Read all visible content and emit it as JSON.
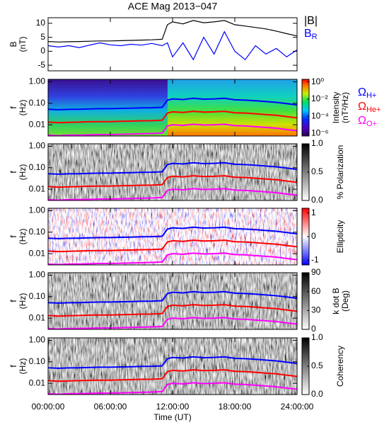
{
  "chart_data": [
    {
      "type": "line",
      "title": "ACE Mag 2013−047",
      "ylabel": "B",
      "yunit": "(nT)",
      "xlabel": "Time (UT)",
      "x": [
        0,
        1,
        2,
        3,
        4,
        5,
        6,
        7,
        8,
        9,
        10,
        11,
        11.5,
        12,
        13,
        14,
        15,
        16,
        17,
        18,
        19,
        20,
        21,
        22,
        23,
        24
      ],
      "xlim": [
        0,
        24
      ],
      "xticks": [
        {
          "value": 0,
          "label": "00:00:00"
        },
        {
          "value": 6,
          "label": "06:00:00"
        },
        {
          "value": 12,
          "label": "12:00:00"
        },
        {
          "value": 18,
          "label": "18:00:00"
        },
        {
          "value": 24,
          "label": "24:00:00"
        }
      ],
      "ylim": [
        -7,
        12
      ],
      "yticks": [
        10,
        5,
        0,
        -5
      ],
      "series": [
        {
          "name": "|B|",
          "color": "#000000",
          "values": [
            3.5,
            3.3,
            3.4,
            3.5,
            3.6,
            3.7,
            3.7,
            3.8,
            3.9,
            4.0,
            4.1,
            4.3,
            9.5,
            10.5,
            9.8,
            11,
            10.2,
            10.5,
            11,
            9.5,
            9,
            8.5,
            8,
            7.2,
            6.3,
            5.5
          ]
        },
        {
          "name": "B",
          "subscript": "R",
          "color": "#0000ff",
          "values": [
            2,
            1.5,
            2,
            1.3,
            2.2,
            3,
            2.3,
            2,
            2.5,
            2.2,
            2.8,
            2,
            3,
            -2,
            3,
            -3,
            5,
            -1,
            7,
            0,
            -3,
            2,
            -1,
            1,
            -2,
            0.5
          ]
        }
      ]
    },
    {
      "type": "spectrogram",
      "ylabel": "f",
      "yunit": "(Hz)",
      "ylog": true,
      "ylim": [
        0.003,
        1.3
      ],
      "yticks": [
        {
          "value": 1,
          "label": "1.00"
        },
        {
          "value": 0.1,
          "label": "0.10"
        },
        {
          "value": 0.01,
          "label": "0.01"
        }
      ],
      "cbar_label": "Intensity",
      "cbar_unit": "(nT²/Hz)",
      "clog": true,
      "clim": [
        5e-07,
        2
      ],
      "colormap": "rainbow",
      "cticks": [
        {
          "value": 1,
          "label": "10⁰"
        },
        {
          "value": 0.01,
          "label": "10⁻²"
        },
        {
          "value": 0.0001,
          "label": "10⁻⁴"
        },
        {
          "value": 1e-06,
          "label": "10⁻⁶"
        }
      ],
      "series": [
        {
          "name": "Ω",
          "subscript": "H+",
          "color": "#0000ff",
          "values": [
            0.053,
            0.05,
            0.052,
            0.053,
            0.055,
            0.056,
            0.056,
            0.058,
            0.059,
            0.061,
            0.062,
            0.065,
            0.14,
            0.16,
            0.15,
            0.17,
            0.155,
            0.16,
            0.17,
            0.145,
            0.14,
            0.13,
            0.12,
            0.11,
            0.096,
            0.084
          ]
        },
        {
          "name": "Ω",
          "subscript": "He+",
          "color": "#ff0000",
          "values": [
            0.0133,
            0.0125,
            0.013,
            0.0133,
            0.0138,
            0.014,
            0.014,
            0.0145,
            0.0148,
            0.0153,
            0.0155,
            0.0163,
            0.035,
            0.04,
            0.0375,
            0.0425,
            0.039,
            0.04,
            0.0425,
            0.036,
            0.035,
            0.0325,
            0.03,
            0.0275,
            0.024,
            0.021
          ]
        },
        {
          "name": "Ω",
          "subscript": "O+",
          "color": "#ff00ff",
          "values": [
            0.0033,
            0.0031,
            0.0033,
            0.0033,
            0.0034,
            0.0035,
            0.0035,
            0.0036,
            0.0037,
            0.0038,
            0.0039,
            0.0041,
            0.0088,
            0.01,
            0.0094,
            0.0106,
            0.0097,
            0.01,
            0.0106,
            0.0091,
            0.0088,
            0.0081,
            0.0075,
            0.0069,
            0.006,
            0.0053
          ]
        }
      ]
    },
    {
      "type": "spectrogram",
      "ylabel": "f",
      "yunit": "(Hz)",
      "ylog": true,
      "ylim": [
        0.003,
        1.3
      ],
      "yticks": [
        {
          "value": 1,
          "label": "1.00"
        },
        {
          "value": 0.1,
          "label": "0.10"
        },
        {
          "value": 0.01,
          "label": "0.01"
        }
      ],
      "cbar_label": "% Polarization",
      "clim": [
        0,
        1
      ],
      "colormap": "gray",
      "cticks": [
        {
          "value": 1,
          "label": "1.0"
        },
        {
          "value": 0.5,
          "label": "0.5"
        },
        {
          "value": 0,
          "label": "0.0"
        }
      ]
    },
    {
      "type": "spectrogram",
      "ylabel": "f",
      "yunit": "(Hz)",
      "ylog": true,
      "ylim": [
        0.003,
        1.3
      ],
      "yticks": [
        {
          "value": 1,
          "label": "1.00"
        },
        {
          "value": 0.1,
          "label": "0.10"
        },
        {
          "value": 0.01,
          "label": "0.01"
        }
      ],
      "cbar_label": "Ellipticity",
      "clim": [
        -1.2,
        1.2
      ],
      "colormap": "bwr",
      "cticks": [
        1,
        0,
        -1
      ]
    },
    {
      "type": "spectrogram",
      "ylabel": "f",
      "yunit": "(Hz)",
      "ylog": true,
      "ylim": [
        0.003,
        1.3
      ],
      "yticks": [
        {
          "value": 1,
          "label": "1.00"
        },
        {
          "value": 0.1,
          "label": "0.10"
        },
        {
          "value": 0.01,
          "label": "0.01"
        }
      ],
      "cbar_label": "k dot B",
      "cbar_unit": "(Deg)",
      "clim": [
        0,
        90
      ],
      "colormap": "gray",
      "cticks": [
        90,
        60,
        30,
        0
      ]
    },
    {
      "type": "spectrogram",
      "ylabel": "f",
      "yunit": "(Hz)",
      "ylog": true,
      "ylim": [
        0.003,
        1.3
      ],
      "yticks": [
        {
          "value": 1,
          "label": "1.00"
        },
        {
          "value": 0.1,
          "label": "0.10"
        },
        {
          "value": 0.01,
          "label": "0.01"
        }
      ],
      "cbar_label": "Coherency",
      "clim": [
        0,
        1
      ],
      "colormap": "gray",
      "cticks": [
        {
          "value": 1,
          "label": "1.0"
        },
        {
          "value": 0.5,
          "label": "0.5"
        },
        {
          "value": 0,
          "label": "0.0"
        }
      ]
    }
  ]
}
